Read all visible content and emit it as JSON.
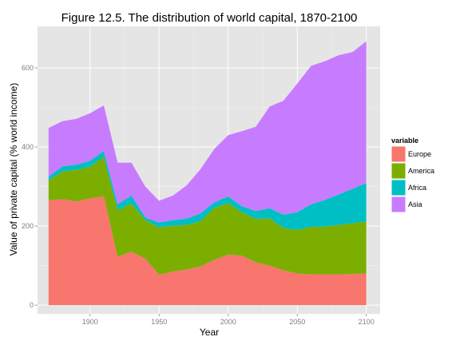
{
  "chart_data": {
    "type": "area",
    "stacked": true,
    "title": "Figure 12.5. The distribution of world capital, 1870-2100",
    "xlabel": "Year",
    "ylabel": "Value of private capital (% world income)",
    "xlim": [
      1862,
      2110
    ],
    "ylim": [
      -22,
      705
    ],
    "xticks": [
      1900,
      1950,
      2000,
      2050,
      2100
    ],
    "yticks": [
      0,
      200,
      400,
      600
    ],
    "grid": true,
    "legend_title": "variable",
    "legend_position": "right",
    "x": [
      1870,
      1880,
      1890,
      1900,
      1910,
      1920,
      1930,
      1940,
      1950,
      1960,
      1970,
      1980,
      1990,
      2000,
      2010,
      2020,
      2030,
      2040,
      2050,
      2060,
      2070,
      2080,
      2090,
      2100
    ],
    "series": [
      {
        "name": "Europe",
        "color": "#F8766D",
        "values": [
          265,
          268,
          262,
          270,
          275,
          122,
          135,
          118,
          77,
          85,
          90,
          98,
          115,
          128,
          125,
          108,
          100,
          88,
          80,
          78,
          78,
          78,
          79,
          80
        ]
      },
      {
        "name": "America",
        "color": "#7CAE00",
        "values": [
          50,
          70,
          80,
          80,
          100,
          118,
          122,
          97,
          120,
          116,
          113,
          114,
          131,
          130,
          110,
          110,
          120,
          107,
          110,
          120,
          121,
          125,
          128,
          132
        ]
      },
      {
        "name": "Africa",
        "color": "#00BFC4",
        "values": [
          10,
          13,
          13,
          15,
          15,
          15,
          20,
          7,
          12,
          14,
          16,
          20,
          14,
          17,
          15,
          20,
          25,
          34,
          45,
          57,
          67,
          77,
          87,
          97
        ]
      },
      {
        "name": "Asia",
        "color": "#C77CFF",
        "values": [
          123,
          114,
          116,
          120,
          115,
          105,
          83,
          78,
          55,
          62,
          84,
          112,
          135,
          155,
          190,
          213,
          257,
          288,
          325,
          350,
          351,
          352,
          346,
          358
        ]
      }
    ]
  }
}
